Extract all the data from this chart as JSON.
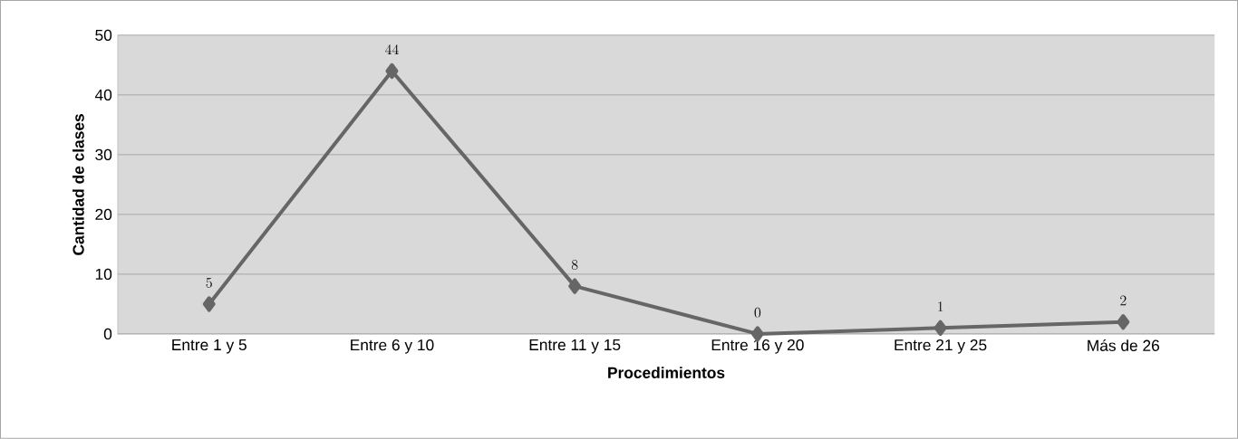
{
  "chart_data": {
    "type": "line",
    "xlabel": "Procedimientos",
    "ylabel": "Cantidad de clases",
    "categories": [
      "Entre 1 y 5",
      "Entre 6 y 10",
      "Entre 11 y 15",
      "Entre 16 y 20",
      "Entre 21 y 25",
      "Más de 26"
    ],
    "series": [
      {
        "color": "#666666",
        "values": [
          5,
          44,
          8,
          0,
          1,
          2
        ]
      }
    ],
    "ylim": [
      0,
      50
    ],
    "yticks": [
      0,
      10,
      20,
      30,
      40,
      50
    ],
    "grid": "y",
    "marker": "diamond",
    "line_style": "solid",
    "data_labels": true
  }
}
